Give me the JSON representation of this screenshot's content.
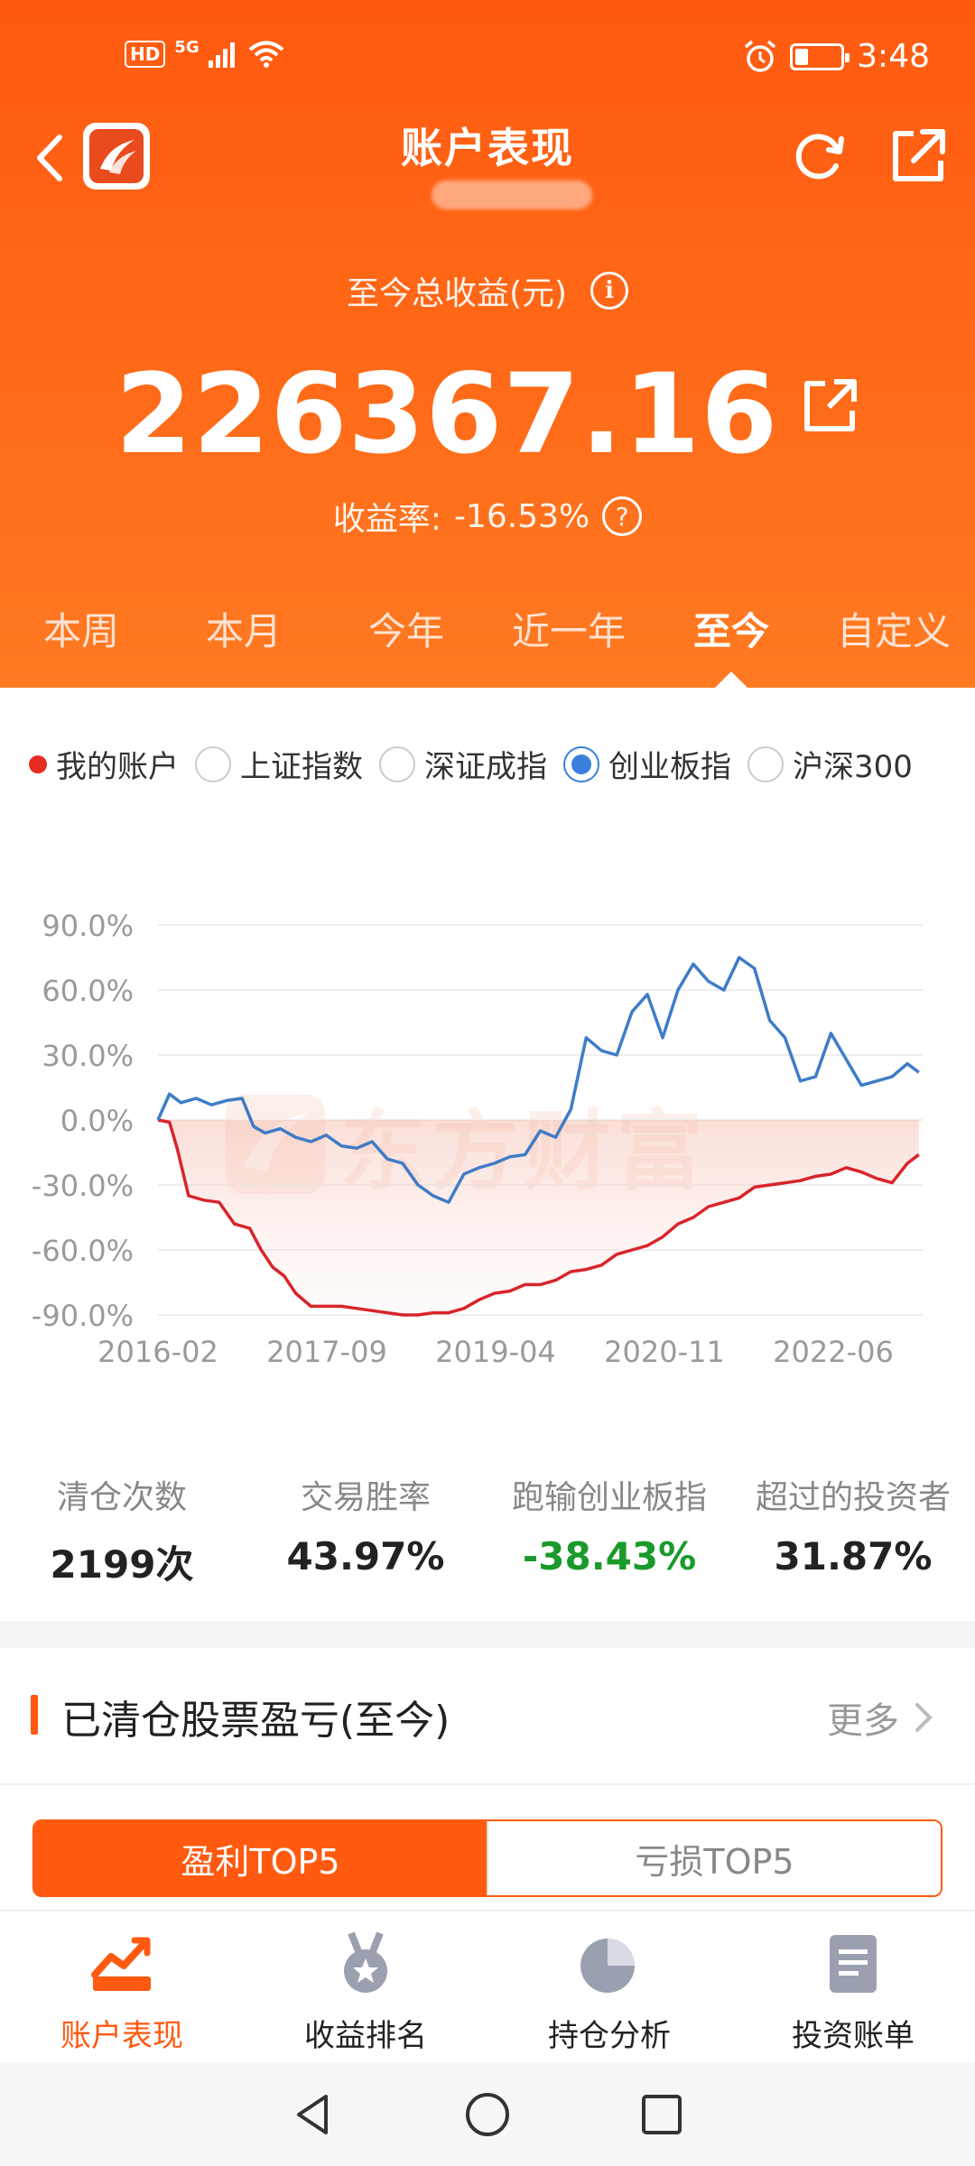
{
  "status_bar": {
    "hd": "HD",
    "network": "5G",
    "time": "3:48"
  },
  "header": {
    "title": "账户表现"
  },
  "summary": {
    "total_profit_label": "至今总收益(元)",
    "total_profit_value": "226367.16",
    "return_rate_label": "收益率:",
    "return_rate_value": "-16.53%"
  },
  "tabs": [
    {
      "label": "本周"
    },
    {
      "label": "本月"
    },
    {
      "label": "今年"
    },
    {
      "label": "近一年"
    },
    {
      "label": "至今",
      "active": true
    },
    {
      "label": "自定义"
    }
  ],
  "legend": [
    {
      "label": "我的账户",
      "type": "dot",
      "color": "#e52b22"
    },
    {
      "label": "上证指数",
      "type": "radio",
      "checked": false
    },
    {
      "label": "深证成指",
      "type": "radio",
      "checked": false
    },
    {
      "label": "创业板指",
      "type": "radio",
      "checked": true
    },
    {
      "label": "沪深300",
      "type": "radio",
      "checked": false
    }
  ],
  "watermark": "东方财富",
  "chart_data": {
    "type": "line",
    "yticks": [
      "90.0%",
      "60.0%",
      "30.0%",
      "0.0%",
      "-30.0%",
      "-60.0%",
      "-90.0%"
    ],
    "ylim": [
      -90,
      90
    ],
    "xticks": [
      "2016-02",
      "2017-09",
      "2019-04",
      "2020-11",
      "2022-06"
    ],
    "xlim": [
      0,
      100
    ],
    "grid": true,
    "series": [
      {
        "name": "我的账户",
        "color": "#d8252b",
        "x": [
          0,
          1.5,
          2.5,
          4,
          6,
          8,
          10,
          12,
          13.5,
          15,
          16.5,
          18,
          20,
          22,
          24,
          26,
          28,
          30,
          32,
          34,
          36,
          38,
          40,
          42,
          44,
          46,
          48,
          50,
          52,
          54,
          56,
          58,
          60,
          62,
          64,
          66,
          68,
          70,
          72,
          74,
          76,
          78,
          80,
          82,
          84,
          86,
          88,
          90,
          92,
          94,
          96,
          98,
          99.5
        ],
        "values": [
          0,
          -1,
          -13,
          -35,
          -37,
          -38,
          -48,
          -50,
          -60,
          -68,
          -72,
          -80,
          -86,
          -86,
          -86,
          -87,
          -88,
          -89,
          -90,
          -90,
          -89,
          -89,
          -87,
          -83,
          -80,
          -79,
          -76,
          -76,
          -74,
          -70,
          -69,
          -67,
          -62,
          -60,
          -58,
          -54,
          -48,
          -45,
          -40,
          -38,
          -36,
          -31,
          -30,
          -29,
          -28,
          -26,
          -25,
          -22,
          -24,
          -27,
          -29,
          -20,
          -16
        ]
      },
      {
        "name": "创业板指",
        "color": "#3f7cc6",
        "x": [
          0,
          1.5,
          3,
          5,
          7,
          9,
          11,
          12.5,
          14,
          16,
          18,
          20,
          22,
          24,
          26,
          28,
          30,
          32,
          34,
          36,
          38,
          40,
          42,
          44,
          46,
          48,
          50,
          52,
          54,
          56,
          58,
          60,
          62,
          64,
          66,
          68,
          70,
          72,
          74,
          76,
          78,
          80,
          82,
          84,
          86,
          88,
          90,
          92,
          94,
          96,
          98,
          99.5
        ],
        "values": [
          0,
          12,
          8,
          10,
          7,
          9,
          10,
          -3,
          -6,
          -4,
          -8,
          -10,
          -7,
          -12,
          -13,
          -10,
          -18,
          -20,
          -30,
          -35,
          -38,
          -25,
          -22,
          -20,
          -17,
          -16,
          -5,
          -8,
          5,
          38,
          32,
          30,
          50,
          58,
          38,
          60,
          72,
          64,
          60,
          75,
          70,
          46,
          38,
          18,
          20,
          40,
          28,
          16,
          18,
          20,
          26,
          22
        ]
      }
    ]
  },
  "stats": [
    {
      "label": "清仓次数",
      "value": "2199次",
      "color": "default"
    },
    {
      "label": "交易胜率",
      "value": "43.97%",
      "color": "default"
    },
    {
      "label": "跑输创业板指",
      "value": "-38.43%",
      "color": "green"
    },
    {
      "label": "超过的投资者",
      "value": "31.87%",
      "color": "default"
    }
  ],
  "cleared_section": {
    "title": "已清仓股票盈亏(至今)",
    "more": "更多",
    "segments": [
      {
        "label": "盈利TOP5",
        "active": true
      },
      {
        "label": "亏损TOP5",
        "active": false
      }
    ]
  },
  "bottom_nav": [
    {
      "label": "账户表现",
      "icon": "trend-chart-icon",
      "active": true
    },
    {
      "label": "收益排名",
      "icon": "medal-icon",
      "active": false
    },
    {
      "label": "持仓分析",
      "icon": "pie-chart-icon",
      "active": false
    },
    {
      "label": "投资账单",
      "icon": "bill-icon",
      "active": false
    }
  ],
  "colors": {
    "brand": "#ff5a10",
    "account_line": "#d8252b",
    "index_line": "#3f7cc6",
    "negative": "#1a9a2a"
  }
}
